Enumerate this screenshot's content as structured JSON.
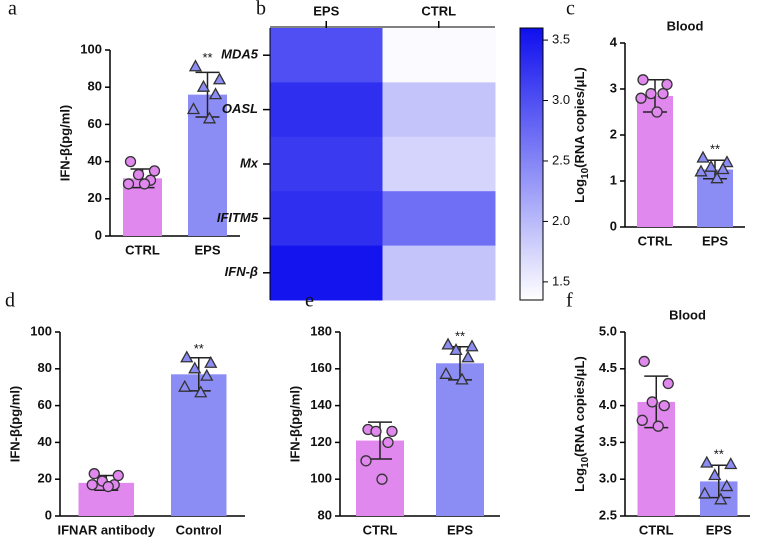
{
  "chart_data": [
    {
      "type": "bar",
      "panel": "a",
      "y_label": "IFN-β(pg/ml)",
      "categories": [
        "CTRL",
        "EPS"
      ],
      "values": [
        31,
        76
      ],
      "errors": [
        5,
        12
      ],
      "points": [
        [
          40,
          35,
          33,
          30,
          28,
          28
        ],
        [
          91,
          84,
          80,
          76,
          68,
          63
        ]
      ],
      "markers": [
        "circle",
        "triangle"
      ],
      "colors": [
        "#e088ee",
        "#8c8cf5"
      ],
      "ylim": [
        0,
        100
      ],
      "yticks": [
        0,
        20,
        40,
        60,
        80,
        100
      ],
      "annotations": [
        {
          "text": "**",
          "category": 1
        }
      ]
    },
    {
      "type": "heatmap",
      "panel": "b",
      "columns": [
        "EPS",
        "CTRL"
      ],
      "rows": [
        "MDA5",
        "OASL",
        "Mx",
        "IFITM5",
        "IFN-β"
      ],
      "values": [
        [
          3.0,
          1.4
        ],
        [
          3.3,
          1.9
        ],
        [
          3.2,
          1.75
        ],
        [
          3.3,
          2.7
        ],
        [
          3.55,
          1.9
        ]
      ],
      "colormap": [
        "#ffffff",
        "#0f0fee"
      ],
      "clim": [
        1.35,
        3.6
      ],
      "cticks": [
        {
          "value": 1.5,
          "label": "1.5"
        },
        {
          "value": 2,
          "label": "2.0"
        },
        {
          "value": 2.5,
          "label": "2.5"
        },
        {
          "value": 3,
          "label": "3.0"
        },
        {
          "value": 3.5,
          "label": "3.5"
        }
      ]
    },
    {
      "type": "bar",
      "panel": "c",
      "title": "Blood",
      "y_label": {
        "base": "Log",
        "sub": "10",
        "rest": "(RNA copies/μL)"
      },
      "categories": [
        "CTRL",
        "EPS"
      ],
      "values": [
        2.85,
        1.25
      ],
      "errors": [
        0.35,
        0.2
      ],
      "points": [
        [
          3.2,
          3.1,
          2.9,
          2.9,
          2.8,
          2.5
        ],
        [
          1.5,
          1.4,
          1.3,
          1.25,
          1.2,
          1.05
        ]
      ],
      "markers": [
        "circle",
        "triangle"
      ],
      "colors": [
        "#e088ee",
        "#8c8cf5"
      ],
      "ylim": [
        0,
        4
      ],
      "yticks": [
        0,
        1,
        2,
        3,
        4
      ],
      "annotations": [
        {
          "text": "**",
          "category": 1
        }
      ]
    },
    {
      "type": "bar",
      "panel": "d",
      "y_label": "IFN-β(pg/ml)",
      "categories": [
        "IFNAR antibody",
        "Control"
      ],
      "values": [
        18,
        77
      ],
      "errors": [
        4,
        9
      ],
      "points": [
        [
          23,
          22,
          19,
          17,
          17,
          16
        ],
        [
          86,
          83,
          80,
          76,
          70,
          67
        ]
      ],
      "markers": [
        "circle",
        "triangle"
      ],
      "colors": [
        "#e088ee",
        "#8c8cf5"
      ],
      "ylim": [
        0,
        100
      ],
      "yticks": [
        0,
        20,
        40,
        60,
        80,
        100
      ],
      "annotations": [
        {
          "text": "**",
          "category": 1
        }
      ]
    },
    {
      "type": "bar",
      "panel": "e",
      "y_label": "IFN-β(pg/ml)",
      "categories": [
        "CTRL",
        "EPS"
      ],
      "values": [
        121,
        163
      ],
      "errors": [
        10,
        9
      ],
      "points": [
        [
          127,
          126,
          126,
          120,
          110,
          100
        ],
        [
          173,
          172,
          170,
          166,
          157,
          154
        ]
      ],
      "markers": [
        "circle",
        "triangle"
      ],
      "colors": [
        "#e088ee",
        "#8c8cf5"
      ],
      "ylim": [
        80,
        180
      ],
      "yticks": [
        80,
        100,
        120,
        140,
        160,
        180
      ],
      "annotations": [
        {
          "text": "**",
          "category": 1
        }
      ]
    },
    {
      "type": "bar",
      "panel": "f",
      "title": "Blood",
      "y_label": {
        "base": "Log",
        "sub": "10",
        "rest": "(RNA copies/μL)"
      },
      "categories": [
        "CTRL",
        "EPS"
      ],
      "values": [
        4.05,
        2.97
      ],
      "errors": [
        0.35,
        0.22
      ],
      "points": [
        [
          4.6,
          4.3,
          4.05,
          4.0,
          3.8,
          3.72
        ],
        [
          3.22,
          3.2,
          3.05,
          2.9,
          2.8,
          2.72
        ]
      ],
      "markers": [
        "circle",
        "triangle"
      ],
      "colors": [
        "#e088ee",
        "#8c8cf5"
      ],
      "ylim": [
        2.5,
        5
      ],
      "yticks": [
        2.5,
        {
          "value": 3,
          "label": "3.0"
        },
        3.5,
        {
          "value": 4,
          "label": "4.0"
        },
        4.5,
        {
          "value": 5,
          "label": "5.0"
        }
      ],
      "annotations": [
        {
          "text": "**",
          "category": 1
        }
      ]
    }
  ]
}
